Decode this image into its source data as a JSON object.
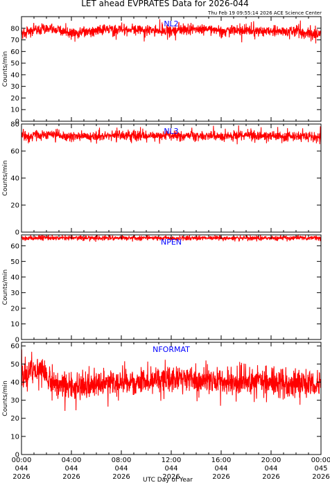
{
  "header": {
    "title": "LET ahead EVPRATES Data for 2026-044",
    "timestamp": "Thu Feb 19 09:55:14 2026 ACE Science Center"
  },
  "xaxis": {
    "label": "UTC Day of Year",
    "ticks": [
      {
        "time": "00:00",
        "doy": "044",
        "year": "2026"
      },
      {
        "time": "04:00",
        "doy": "044",
        "year": "2026"
      },
      {
        "time": "08:00",
        "doy": "044",
        "year": "2026"
      },
      {
        "time": "12:00",
        "doy": "044",
        "year": "2026"
      },
      {
        "time": "16:00",
        "doy": "044",
        "year": "2026"
      },
      {
        "time": "20:00",
        "doy": "044",
        "year": "2026"
      },
      {
        "time": "00:00",
        "doy": "045",
        "year": "2026"
      }
    ]
  },
  "colors": {
    "series": "#ff0000",
    "label": "#0000ff",
    "axes": "#000000"
  },
  "chart_data": [
    {
      "type": "line",
      "series_label": "NL2",
      "ylabel": "Counts/min",
      "ylim": [
        0,
        90
      ],
      "yticks": [
        0,
        10,
        20,
        30,
        40,
        50,
        60,
        70,
        80
      ],
      "xlim_hours": [
        0,
        24
      ],
      "mean": 78,
      "noise": 4.2,
      "min": 67,
      "max": 90,
      "points": [
        [
          0,
          76
        ],
        [
          2,
          80
        ],
        [
          4,
          76
        ],
        [
          6,
          78
        ],
        [
          8,
          79
        ],
        [
          10,
          78
        ],
        [
          12,
          78
        ],
        [
          14,
          79
        ],
        [
          16,
          78
        ],
        [
          18,
          78
        ],
        [
          20,
          77
        ],
        [
          22,
          78
        ],
        [
          24,
          74
        ]
      ]
    },
    {
      "type": "line",
      "series_label": "NL3",
      "ylabel": "Counts/min",
      "ylim": [
        0,
        80
      ],
      "yticks": [
        0,
        20,
        40,
        60,
        80
      ],
      "xlim_hours": [
        0,
        24
      ],
      "mean": 71,
      "noise": 3.3,
      "min": 63,
      "max": 80,
      "points": [
        [
          0,
          71
        ],
        [
          2,
          72
        ],
        [
          4,
          71
        ],
        [
          6,
          71
        ],
        [
          8,
          72
        ],
        [
          10,
          71
        ],
        [
          12,
          72
        ],
        [
          14,
          71
        ],
        [
          16,
          71
        ],
        [
          18,
          72
        ],
        [
          20,
          71
        ],
        [
          22,
          71
        ],
        [
          24,
          70
        ]
      ]
    },
    {
      "type": "line",
      "series_label": "NPEN",
      "ylabel": "Counts/min",
      "ylim": [
        0,
        67
      ],
      "yticks": [
        0,
        10,
        20,
        30,
        40,
        50,
        60
      ],
      "xlim_hours": [
        0,
        24
      ],
      "mean": 65.3,
      "noise": 1.3,
      "min": 62,
      "max": 67,
      "points": [
        [
          0,
          65
        ],
        [
          4,
          65
        ],
        [
          8,
          65
        ],
        [
          12,
          65
        ],
        [
          16,
          65
        ],
        [
          20,
          65
        ],
        [
          24,
          65
        ]
      ]
    },
    {
      "type": "line",
      "series_label": "NFORMAT",
      "ylabel": "Counts/min",
      "ylim": [
        0,
        62
      ],
      "yticks": [
        0,
        10,
        20,
        30,
        40,
        50,
        60
      ],
      "xlim_hours": [
        0,
        24
      ],
      "mean": 40,
      "noise": 6.5,
      "min": 24,
      "max": 60,
      "points": [
        [
          0,
          42
        ],
        [
          1,
          48
        ],
        [
          2,
          44
        ],
        [
          3,
          38
        ],
        [
          4,
          37
        ],
        [
          6,
          38
        ],
        [
          8,
          39
        ],
        [
          10,
          41
        ],
        [
          12,
          42
        ],
        [
          14,
          41
        ],
        [
          16,
          40
        ],
        [
          18,
          40
        ],
        [
          20,
          40
        ],
        [
          22,
          40
        ],
        [
          24,
          38
        ]
      ]
    }
  ]
}
